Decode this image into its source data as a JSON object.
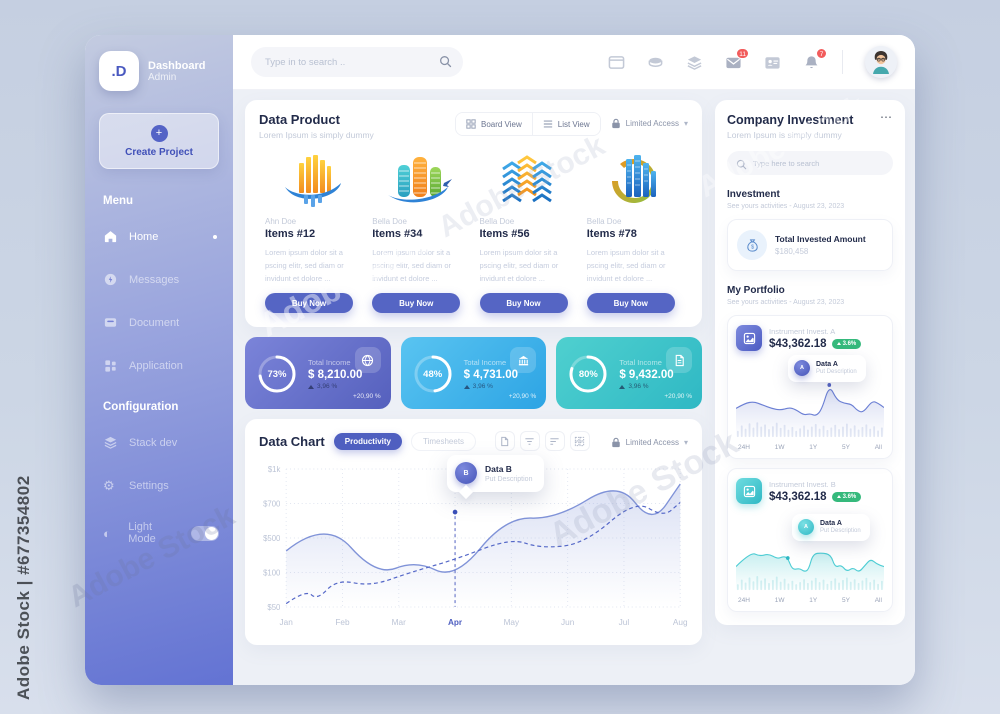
{
  "watermark": {
    "side": "Adobe Stock | #677354802",
    "ghost": "Adobe Stock"
  },
  "colors": {
    "accent": "#5565c4",
    "stat1": "#5560bd",
    "stat2": "#2da4e4",
    "stat3": "#2fb8c4",
    "green_badge": "#35b97c",
    "red_badge": "#f25c5c",
    "teal": "#3ec6cb"
  },
  "sidebar": {
    "logo": ".D",
    "title": "Dashboard",
    "subtitle": "Admin",
    "create_label": "Create Project",
    "menu_heading": "Menu",
    "menu": [
      {
        "label": "Home"
      },
      {
        "label": "Messages"
      },
      {
        "label": "Document"
      },
      {
        "label": "Application"
      }
    ],
    "config_heading": "Configuration",
    "config": [
      {
        "label": "Stack dev"
      },
      {
        "label": "Settings"
      },
      {
        "label": "Light Mode"
      }
    ]
  },
  "topbar": {
    "search_placeholder": "Type in to search ..",
    "mail_badge": "11",
    "bell_badge": "7"
  },
  "product": {
    "title": "Data Product",
    "subtitle": "Lorem Ipsum is simply dummy",
    "board_view": "Board View",
    "list_view": "List View",
    "access_label": "Limited Access",
    "items": [
      {
        "author": "Ahn Doe",
        "name": "Items #12",
        "desc": "Lorem ipsum dolor sit a pscing elitr, sed diam or invidunt et dolore ...",
        "cta": "Buy Now"
      },
      {
        "author": "Bella Doe",
        "name": "Items #34",
        "desc": "Lorem ipsum dolor sit a pscing elitr, sed diam or invidunt et dolore ...",
        "cta": "Buy Now"
      },
      {
        "author": "Bella Doe",
        "name": "Items #56",
        "desc": "Lorem ipsum dolor sit a pscing elitr, sed diam or invidunt et dolore ...",
        "cta": "Buy Now"
      },
      {
        "author": "Bella Doe",
        "name": "Items #78",
        "desc": "Lorem ipsum dolor sit a pscing elitr, sed diam or invidunt et dolore ...",
        "cta": "Buy Now"
      }
    ]
  },
  "stats": [
    {
      "percent": 73,
      "percent_label": "73%",
      "label": "Total Income",
      "amount": "$ 8,210.00",
      "change": "3,96 %",
      "delta": "+20,90 %",
      "icon": "globe"
    },
    {
      "percent": 48,
      "percent_label": "48%",
      "label": "Total Income",
      "amount": "$ 4,731.00",
      "change": "3,96 %",
      "delta": "+20,90 %",
      "icon": "bank"
    },
    {
      "percent": 80,
      "percent_label": "80%",
      "label": "Total Income",
      "amount": "$ 9,432.00",
      "change": "3,96 %",
      "delta": "+20,90 %",
      "icon": "file"
    }
  ],
  "chart": {
    "title": "Data Chart",
    "tab_active": "Productivity",
    "tab_inactive": "Timesheets",
    "access_label": "Limited Access",
    "tooltip": {
      "badge": "B",
      "title": "Data B",
      "subtitle": "Put Description"
    }
  },
  "invest": {
    "title": "Company Investment",
    "subtitle": "Lorem Ipsum is simply dummy",
    "search_placeholder": "Type here to search",
    "section1_title": "Investment",
    "section1_sub": "See yours activities - August 23, 2023",
    "total_label": "Total Invested Amount",
    "total_value": "$180,458",
    "section2_title": "My Portfolio",
    "section2_sub": "See yours activities - August 23, 2023",
    "portfolio": [
      {
        "name": "Instrument Invest. A",
        "value": "$43,362.18",
        "change": "3.6%",
        "badge": "A",
        "tip_title": "Data A",
        "tip_sub": "Put Description"
      },
      {
        "name": "Instrument Invest. B",
        "value": "$43,362.18",
        "change": "3.6%",
        "badge": "A",
        "tip_title": "Data A",
        "tip_sub": "Put Description"
      }
    ]
  },
  "chart_data": [
    {
      "id": "main-productivity",
      "type": "line",
      "title": "Data Chart - Productivity",
      "x_labels": [
        "Jan",
        "Feb",
        "Mar",
        "Apr",
        "May",
        "Jun",
        "Jul",
        "Aug"
      ],
      "y_ticks": [
        {
          "label": "$50",
          "value": 50
        },
        {
          "label": "$100",
          "value": 100
        },
        {
          "label": "$500",
          "value": 500
        },
        {
          "label": "$700",
          "value": 700
        },
        {
          "label": "$1k",
          "value": 1000
        }
      ],
      "highlight_index": 3,
      "marker": {
        "month": 3,
        "value": 650
      },
      "grid": "dotted",
      "series": [
        {
          "name": "Data B",
          "style": "solid-area",
          "points": [
            [
              0,
              350
            ],
            [
              0.7,
              610
            ],
            [
              1.6,
              95
            ],
            [
              2.3,
              240
            ],
            [
              3,
              90
            ],
            [
              3.9,
              620
            ],
            [
              4.8,
              610
            ],
            [
              5.9,
              900
            ],
            [
              6.5,
              575
            ],
            [
              7,
              870
            ]
          ]
        },
        {
          "name": "Data A",
          "style": "dashed",
          "points": [
            [
              0,
              55
            ],
            [
              0.35,
              75
            ],
            [
              0.55,
              60
            ],
            [
              0.9,
              90
            ],
            [
              1.5,
              80
            ],
            [
              2.2,
              100
            ],
            [
              3,
              250
            ],
            [
              4,
              500
            ],
            [
              4.5,
              380
            ],
            [
              5.3,
              430
            ],
            [
              6.2,
              730
            ],
            [
              6.7,
              620
            ],
            [
              7,
              710
            ]
          ]
        }
      ]
    },
    {
      "id": "portfolio-a",
      "type": "line-bars",
      "x_labels": [
        "24H",
        "1W",
        "1Y",
        "5Y",
        "All"
      ],
      "line": [
        [
          0,
          40
        ],
        [
          6,
          52
        ],
        [
          12,
          56
        ],
        [
          18,
          48
        ],
        [
          24,
          40
        ],
        [
          30,
          36
        ],
        [
          36,
          42
        ],
        [
          40,
          38
        ],
        [
          46,
          24
        ],
        [
          50,
          28
        ],
        [
          54,
          22
        ],
        [
          58,
          38
        ],
        [
          63,
          95
        ],
        [
          68,
          60
        ],
        [
          73,
          52
        ],
        [
          78,
          50
        ],
        [
          82,
          35
        ],
        [
          86,
          30
        ],
        [
          92,
          58
        ],
        [
          96,
          52
        ],
        [
          100,
          42
        ]
      ],
      "bars": [
        30,
        55,
        40,
        65,
        45,
        70,
        50,
        60,
        38,
        52,
        68,
        44,
        58,
        35,
        48,
        30,
        42,
        55,
        36,
        50,
        62,
        40,
        54,
        34,
        46,
        58,
        38,
        50,
        64,
        42,
        56,
        36,
        48,
        60,
        40,
        52,
        32,
        46
      ],
      "marker_x": 63
    },
    {
      "id": "portfolio-b",
      "type": "line-bars",
      "x_labels": [
        "24H",
        "1W",
        "1Y",
        "5Y",
        "All"
      ],
      "line": [
        [
          0,
          28
        ],
        [
          10,
          62
        ],
        [
          16,
          52
        ],
        [
          22,
          58
        ],
        [
          28,
          46
        ],
        [
          32,
          52
        ],
        [
          35,
          48
        ],
        [
          38,
          20
        ],
        [
          43,
          24
        ],
        [
          46,
          16
        ],
        [
          49,
          20
        ],
        [
          52,
          58
        ],
        [
          58,
          60
        ],
        [
          64,
          56
        ],
        [
          67,
          26
        ],
        [
          71,
          32
        ],
        [
          75,
          16
        ],
        [
          79,
          26
        ],
        [
          83,
          14
        ],
        [
          87,
          30
        ],
        [
          91,
          46
        ],
        [
          95,
          34
        ],
        [
          100,
          28
        ]
      ],
      "bars": [
        28,
        50,
        36,
        60,
        42,
        66,
        46,
        56,
        34,
        48,
        64,
        40,
        54,
        32,
        44,
        28,
        38,
        52,
        34,
        46,
        58,
        38,
        50,
        30,
        44,
        56,
        36,
        48,
        60,
        40,
        52,
        34,
        46,
        58,
        38,
        50,
        30,
        44
      ],
      "marker_x": 35
    }
  ]
}
